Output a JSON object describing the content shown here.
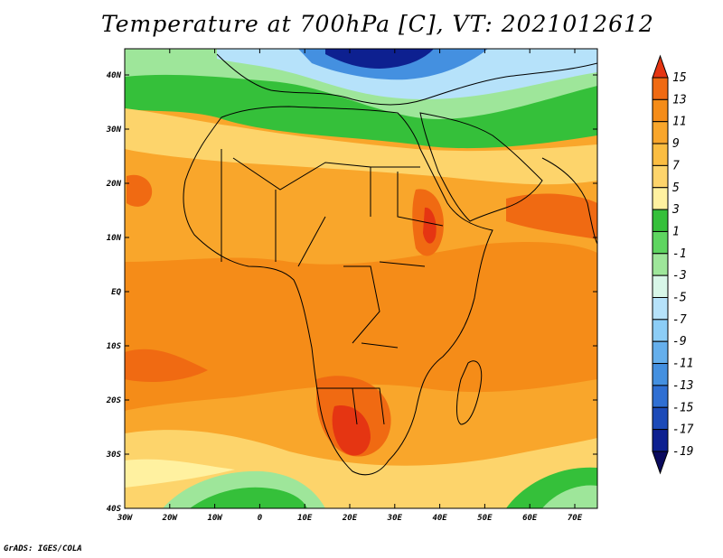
{
  "title": "Temperature at 700hPa [C], VT: 2021012612",
  "credit": "GrADS: IGES/COLA",
  "map": {
    "lon_range": [
      -30,
      75
    ],
    "lat_range": [
      -40,
      45
    ],
    "lat_ticks": [
      "40N",
      "30N",
      "20N",
      "10N",
      "EQ",
      "10S",
      "20S",
      "30S",
      "40S"
    ],
    "lon_ticks": [
      "30W",
      "20W",
      "10W",
      "0",
      "10E",
      "20E",
      "30E",
      "40E",
      "50E",
      "60E",
      "70E"
    ]
  },
  "colorbar": {
    "labels": [
      "15",
      "13",
      "11",
      "9",
      "7",
      "5",
      "3",
      "1",
      "-1",
      "-3",
      "-5",
      "-7",
      "-9",
      "-11",
      "-13",
      "-15",
      "-17",
      "-19"
    ],
    "colors": [
      "#e53512",
      "#f06a12",
      "#f58c18",
      "#f9a62b",
      "#fbbd41",
      "#fdd46b",
      "#fff1a0",
      "#35c03a",
      "#5ed560",
      "#9ee69a",
      "#d8f6e8",
      "#b6e2fa",
      "#8ccdf6",
      "#65afec",
      "#4490e0",
      "#2f6fd3",
      "#1c4ab8",
      "#0d2090",
      "#0a0a5e"
    ]
  }
}
